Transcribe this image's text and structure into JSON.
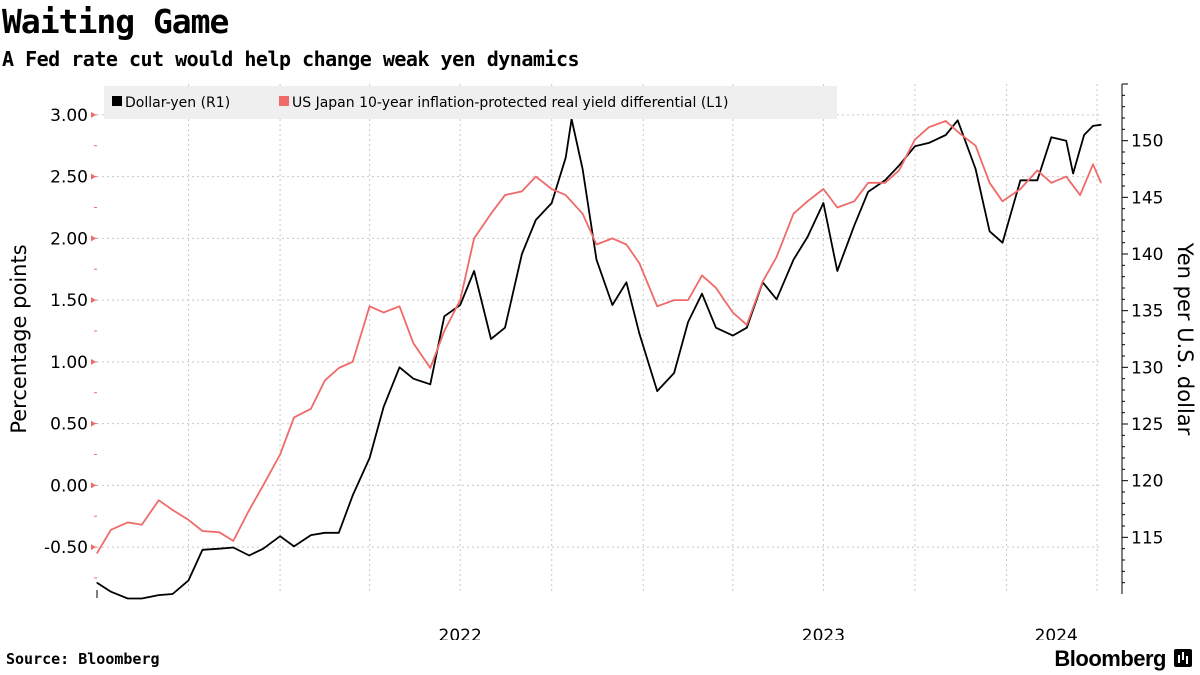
{
  "header": {
    "title": "Waiting Game",
    "subtitle": "A Fed rate cut would help change weak yen dynamics"
  },
  "footer": {
    "source": "Source: Bloomberg",
    "brand": "Bloomberg"
  },
  "chart_data": {
    "type": "line",
    "grid": true,
    "legend_placement": "top-left",
    "x_tick_labels": [
      "2022",
      "2023",
      "2024"
    ],
    "left_axis": {
      "label": "Percentage points",
      "ticks": [
        "3.00",
        "2.50",
        "2.00",
        "1.50",
        "1.00",
        "0.50",
        "0.00",
        "-0.50"
      ],
      "range": [
        -0.88,
        3.25
      ]
    },
    "right_axis": {
      "label": "Yen per U.S. dollar",
      "ticks": [
        "150",
        "145",
        "140",
        "135",
        "130",
        "125",
        "120",
        "115"
      ],
      "range": [
        110,
        155
      ]
    },
    "series": [
      {
        "name": "Dollar-yen (R1)",
        "axis": "right",
        "color": "#000000",
        "points": [
          [
            "2021-07-01",
            111.0
          ],
          [
            "2021-07-15",
            110.2
          ],
          [
            "2021-08-01",
            109.6
          ],
          [
            "2021-08-15",
            109.6
          ],
          [
            "2021-09-01",
            109.9
          ],
          [
            "2021-09-15",
            110.0
          ],
          [
            "2021-10-01",
            111.2
          ],
          [
            "2021-10-15",
            113.9
          ],
          [
            "2021-11-01",
            114.0
          ],
          [
            "2021-11-15",
            114.1
          ],
          [
            "2021-12-01",
            113.4
          ],
          [
            "2021-12-15",
            114.0
          ],
          [
            "2022-01-01",
            115.1
          ],
          [
            "2022-01-15",
            114.2
          ],
          [
            "2022-02-01",
            115.2
          ],
          [
            "2022-02-15",
            115.4
          ],
          [
            "2022-03-01",
            115.4
          ],
          [
            "2022-03-15",
            118.7
          ],
          [
            "2022-04-01",
            122.0
          ],
          [
            "2022-04-15",
            126.5
          ],
          [
            "2022-05-01",
            130.0
          ],
          [
            "2022-05-15",
            129.0
          ],
          [
            "2022-06-01",
            128.5
          ],
          [
            "2022-06-15",
            134.5
          ],
          [
            "2022-07-01",
            135.5
          ],
          [
            "2022-07-15",
            138.5
          ],
          [
            "2022-08-01",
            132.5
          ],
          [
            "2022-08-15",
            133.5
          ],
          [
            "2022-09-01",
            140.0
          ],
          [
            "2022-09-15",
            143.0
          ],
          [
            "2022-10-01",
            144.5
          ],
          [
            "2022-10-15",
            148.5
          ],
          [
            "2022-10-21",
            151.9
          ],
          [
            "2022-11-01",
            147.5
          ],
          [
            "2022-11-15",
            139.5
          ],
          [
            "2022-12-01",
            135.5
          ],
          [
            "2022-12-15",
            137.5
          ],
          [
            "2022-12-28",
            133.0
          ],
          [
            "2023-01-15",
            127.9
          ],
          [
            "2023-02-01",
            129.5
          ],
          [
            "2023-02-15",
            134.0
          ],
          [
            "2023-03-01",
            136.5
          ],
          [
            "2023-03-15",
            133.5
          ],
          [
            "2023-04-01",
            132.8
          ],
          [
            "2023-04-15",
            133.5
          ],
          [
            "2023-05-01",
            137.5
          ],
          [
            "2023-05-15",
            136.0
          ],
          [
            "2023-06-01",
            139.5
          ],
          [
            "2023-06-15",
            141.5
          ],
          [
            "2023-07-01",
            144.5
          ],
          [
            "2023-07-15",
            138.5
          ],
          [
            "2023-08-01",
            142.5
          ],
          [
            "2023-08-15",
            145.5
          ],
          [
            "2023-09-01",
            146.5
          ],
          [
            "2023-09-15",
            147.8
          ],
          [
            "2023-10-01",
            149.5
          ],
          [
            "2023-10-15",
            149.8
          ],
          [
            "2023-11-01",
            150.5
          ],
          [
            "2023-11-13",
            151.8
          ],
          [
            "2023-12-01",
            147.5
          ],
          [
            "2023-12-15",
            142.0
          ],
          [
            "2023-12-28",
            141.0
          ],
          [
            "2024-01-15",
            146.5
          ],
          [
            "2024-02-01",
            146.5
          ],
          [
            "2024-02-15",
            150.3
          ],
          [
            "2024-03-01",
            150.0
          ],
          [
            "2024-03-08",
            147.1
          ],
          [
            "2024-03-19",
            150.5
          ],
          [
            "2024-03-28",
            151.3
          ],
          [
            "2024-04-05",
            151.4
          ]
        ]
      },
      {
        "name": "US Japan 10-year inflation-protected real yield differential (L1)",
        "axis": "left",
        "color": "#f06a6a",
        "points": [
          [
            "2021-07-01",
            -0.55
          ],
          [
            "2021-07-15",
            -0.36
          ],
          [
            "2021-08-01",
            -0.3
          ],
          [
            "2021-08-15",
            -0.32
          ],
          [
            "2021-09-01",
            -0.12
          ],
          [
            "2021-09-15",
            -0.2
          ],
          [
            "2021-10-01",
            -0.28
          ],
          [
            "2021-10-15",
            -0.37
          ],
          [
            "2021-11-01",
            -0.38
          ],
          [
            "2021-11-15",
            -0.45
          ],
          [
            "2021-12-01",
            -0.2
          ],
          [
            "2021-12-15",
            0.0
          ],
          [
            "2022-01-01",
            0.25
          ],
          [
            "2022-01-15",
            0.55
          ],
          [
            "2022-02-01",
            0.62
          ],
          [
            "2022-02-15",
            0.85
          ],
          [
            "2022-03-01",
            0.95
          ],
          [
            "2022-03-15",
            1.0
          ],
          [
            "2022-04-01",
            1.45
          ],
          [
            "2022-04-15",
            1.4
          ],
          [
            "2022-05-01",
            1.45
          ],
          [
            "2022-05-15",
            1.15
          ],
          [
            "2022-06-01",
            0.95
          ],
          [
            "2022-06-15",
            1.25
          ],
          [
            "2022-07-01",
            1.5
          ],
          [
            "2022-07-15",
            2.0
          ],
          [
            "2022-08-01",
            2.2
          ],
          [
            "2022-08-15",
            2.35
          ],
          [
            "2022-09-01",
            2.38
          ],
          [
            "2022-09-15",
            2.5
          ],
          [
            "2022-10-01",
            2.4
          ],
          [
            "2022-10-15",
            2.35
          ],
          [
            "2022-11-01",
            2.2
          ],
          [
            "2022-11-15",
            1.95
          ],
          [
            "2022-12-01",
            2.0
          ],
          [
            "2022-12-15",
            1.95
          ],
          [
            "2022-12-28",
            1.8
          ],
          [
            "2023-01-15",
            1.45
          ],
          [
            "2023-02-01",
            1.5
          ],
          [
            "2023-02-15",
            1.5
          ],
          [
            "2023-03-01",
            1.7
          ],
          [
            "2023-03-15",
            1.6
          ],
          [
            "2023-04-01",
            1.4
          ],
          [
            "2023-04-15",
            1.3
          ],
          [
            "2023-05-01",
            1.65
          ],
          [
            "2023-05-15",
            1.85
          ],
          [
            "2023-06-01",
            2.2
          ],
          [
            "2023-06-15",
            2.3
          ],
          [
            "2023-07-01",
            2.4
          ],
          [
            "2023-07-15",
            2.25
          ],
          [
            "2023-08-01",
            2.3
          ],
          [
            "2023-08-15",
            2.45
          ],
          [
            "2023-09-01",
            2.45
          ],
          [
            "2023-09-15",
            2.55
          ],
          [
            "2023-10-01",
            2.8
          ],
          [
            "2023-10-15",
            2.9
          ],
          [
            "2023-11-01",
            2.95
          ],
          [
            "2023-11-15",
            2.85
          ],
          [
            "2023-12-01",
            2.75
          ],
          [
            "2023-12-15",
            2.45
          ],
          [
            "2023-12-28",
            2.3
          ],
          [
            "2024-01-15",
            2.4
          ],
          [
            "2024-02-01",
            2.55
          ],
          [
            "2024-02-15",
            2.45
          ],
          [
            "2024-03-01",
            2.5
          ],
          [
            "2024-03-15",
            2.35
          ],
          [
            "2024-03-28",
            2.6
          ],
          [
            "2024-04-05",
            2.45
          ]
        ]
      }
    ]
  }
}
